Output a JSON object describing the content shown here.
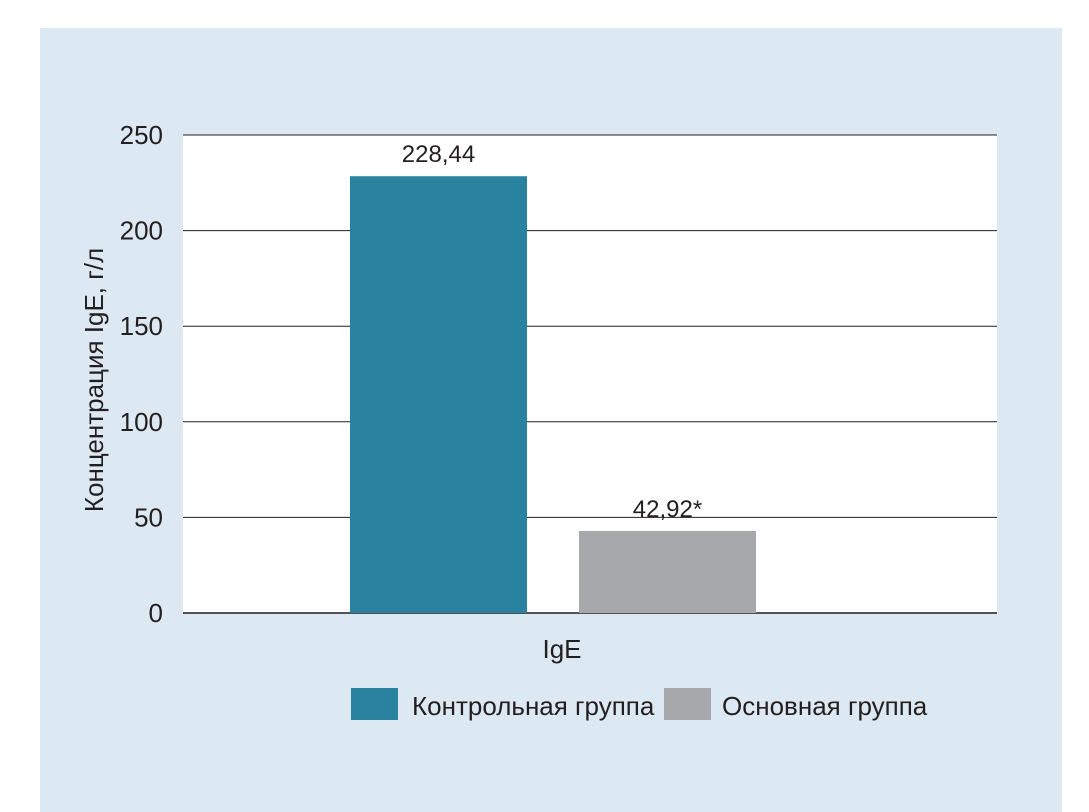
{
  "chart_data": {
    "type": "bar",
    "categories": [
      "IgE"
    ],
    "series": [
      {
        "name": "Контрольная группа",
        "values": [
          228.44
        ],
        "label": "228,44",
        "color": "#2a82a1"
      },
      {
        "name": "Основная группа",
        "values": [
          42.92
        ],
        "label": "42,92*",
        "color": "#a6a8ab"
      }
    ],
    "ylabel": "Концентрация IgE, г/л",
    "xlabel": "",
    "ylim": [
      0,
      250
    ],
    "yticks": [
      "0",
      "50",
      "100",
      "150",
      "200",
      "250"
    ],
    "grid": true,
    "legend_position": "bottom"
  },
  "colors": {
    "background": "#dde9f2",
    "plot_area": "#ffffff",
    "gridline": "#231f20"
  }
}
